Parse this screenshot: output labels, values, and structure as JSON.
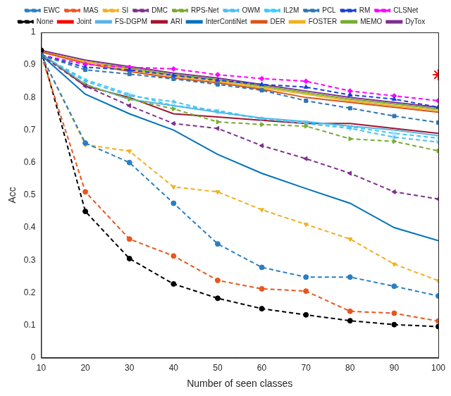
{
  "chart_data": {
    "type": "line",
    "x_label": "Number of seen classes",
    "y_label": "Acc",
    "x": [
      10,
      20,
      30,
      40,
      50,
      60,
      70,
      80,
      90,
      100
    ],
    "xlim": [
      10,
      100
    ],
    "xticks": [
      10,
      20,
      30,
      40,
      50,
      60,
      70,
      80,
      90,
      100
    ],
    "ylim": [
      0,
      1
    ],
    "yticks": [
      0,
      0.1,
      0.2,
      0.3,
      0.4,
      0.5,
      0.6,
      0.7,
      0.8,
      0.9,
      1
    ],
    "grid": false,
    "legend": "top",
    "series": [
      {
        "name": "EWC",
        "color": "#2a7fc0",
        "marker": "circle",
        "line_style": "dashed",
        "values": [
          0.93,
          0.66,
          0.6,
          0.475,
          0.35,
          0.278,
          0.248,
          0.248,
          0.22,
          0.19
        ]
      },
      {
        "name": "MAS",
        "color": "#e8561f",
        "marker": "circle",
        "line_style": "dashed",
        "values": [
          0.93,
          0.51,
          0.365,
          0.313,
          0.238,
          0.212,
          0.205,
          0.143,
          0.137,
          0.113
        ]
      },
      {
        "name": "SI",
        "color": "#f0b020",
        "marker": "triangle-down",
        "line_style": "dashed",
        "values": [
          0.93,
          0.655,
          0.635,
          0.525,
          0.51,
          0.455,
          0.41,
          0.365,
          0.288,
          0.237
        ]
      },
      {
        "name": "DMC",
        "color": "#7e2f8e",
        "marker": "triangle-left",
        "line_style": "dashed",
        "values": [
          0.93,
          0.835,
          0.775,
          0.72,
          0.705,
          0.652,
          0.612,
          0.567,
          0.51,
          0.488
        ]
      },
      {
        "name": "RPS-Net",
        "color": "#77ac30",
        "marker": "triangle-right",
        "line_style": "dashed",
        "values": [
          0.93,
          0.84,
          0.795,
          0.765,
          0.725,
          0.717,
          0.712,
          0.673,
          0.665,
          0.636
        ]
      },
      {
        "name": "OWM",
        "color": "#4dbeee",
        "marker": "star",
        "line_style": "dashed",
        "values": [
          0.93,
          0.85,
          0.805,
          0.787,
          0.755,
          0.735,
          0.72,
          0.705,
          0.678,
          0.663
        ]
      },
      {
        "name": "IL2M",
        "color": "#33ccff",
        "marker": "crossRot",
        "line_style": "dashed",
        "values": [
          0.93,
          0.855,
          0.81,
          0.775,
          0.76,
          0.735,
          0.725,
          0.71,
          0.69,
          0.675
        ]
      },
      {
        "name": "PCL",
        "color": "#2e75b6",
        "marker": "rect",
        "line_style": "dashed",
        "values": [
          0.93,
          0.885,
          0.872,
          0.857,
          0.84,
          0.822,
          0.79,
          0.767,
          0.743,
          0.723
        ]
      },
      {
        "name": "RM",
        "color": "#1a3fd6",
        "marker": "triangle",
        "line_style": "dashed",
        "values": [
          0.93,
          0.893,
          0.885,
          0.868,
          0.853,
          0.84,
          0.832,
          0.808,
          0.795,
          0.77
        ]
      },
      {
        "name": "CLSNet",
        "color": "#ff00ff",
        "marker": "rectRot",
        "line_style": "dashed",
        "values": [
          0.93,
          0.902,
          0.893,
          0.888,
          0.87,
          0.858,
          0.85,
          0.82,
          0.805,
          0.79
        ]
      },
      {
        "name": "None",
        "color": "#000000",
        "marker": "circle",
        "line_style": "dashed",
        "values": [
          0.945,
          0.45,
          0.305,
          0.227,
          0.183,
          0.151,
          0.132,
          0.114,
          0.102,
          0.096
        ]
      },
      {
        "name": "Joint",
        "color": "#ff0000",
        "marker": "star",
        "line_style": "none",
        "values": [
          null,
          null,
          null,
          null,
          null,
          null,
          null,
          null,
          null,
          0.87
        ]
      },
      {
        "name": "FS-DGPM",
        "color": "#5ab4e6",
        "marker": "none",
        "line_style": "solid",
        "values": [
          0.935,
          0.84,
          0.795,
          0.775,
          0.755,
          0.737,
          0.726,
          0.712,
          0.7,
          0.683
        ]
      },
      {
        "name": "ARI",
        "color": "#a2142f",
        "marker": "none",
        "line_style": "solid",
        "values": [
          0.935,
          0.835,
          0.8,
          0.75,
          0.74,
          0.73,
          0.72,
          0.72,
          0.705,
          0.69
        ]
      },
      {
        "name": "InterContiNet",
        "color": "#0072bd",
        "marker": "none",
        "line_style": "solid",
        "values": [
          0.93,
          0.81,
          0.75,
          0.7,
          0.625,
          0.567,
          0.52,
          0.475,
          0.4,
          0.36
        ]
      },
      {
        "name": "DER",
        "color": "#d95319",
        "marker": "none",
        "line_style": "solid",
        "values": [
          0.94,
          0.905,
          0.88,
          0.86,
          0.845,
          0.825,
          0.8,
          0.785,
          0.77,
          0.755
        ]
      },
      {
        "name": "FOSTER",
        "color": "#edb120",
        "marker": "none",
        "line_style": "solid",
        "values": [
          0.94,
          0.91,
          0.885,
          0.865,
          0.85,
          0.83,
          0.81,
          0.79,
          0.775,
          0.76
        ]
      },
      {
        "name": "MEMO",
        "color": "#77ac30",
        "marker": "none",
        "line_style": "solid",
        "values": [
          0.94,
          0.91,
          0.89,
          0.87,
          0.855,
          0.835,
          0.815,
          0.795,
          0.78,
          0.765
        ]
      },
      {
        "name": "DyTox",
        "color": "#7e2f8e",
        "marker": "none",
        "line_style": "solid",
        "values": [
          0.945,
          0.915,
          0.895,
          0.875,
          0.86,
          0.84,
          0.82,
          0.8,
          0.785,
          0.77
        ]
      }
    ]
  }
}
